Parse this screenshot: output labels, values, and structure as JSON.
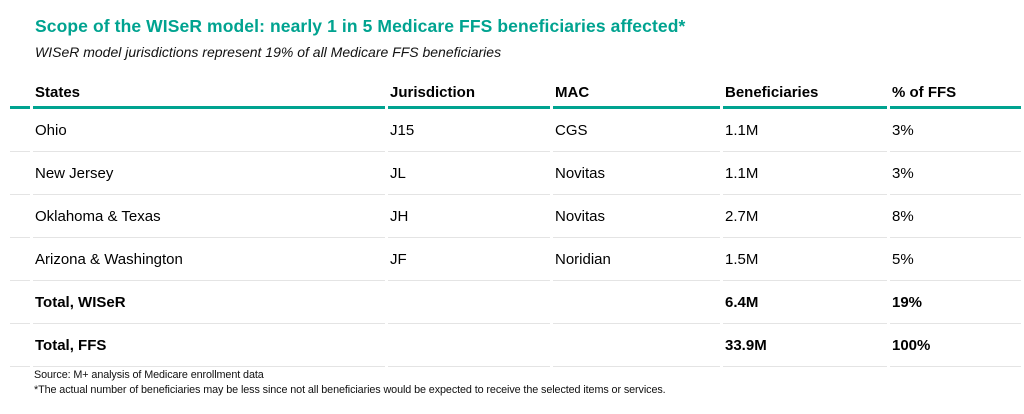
{
  "header": {
    "title": "Scope of the WISeR model: nearly 1 in 5 Medicare FFS beneficiaries affected*",
    "subtitle": "WISeR model jurisdictions represent 19% of all Medicare FFS beneficiaries"
  },
  "table": {
    "columns": [
      "States",
      "Jurisdiction",
      "MAC",
      "Beneficiaries",
      "% of FFS"
    ],
    "rows": [
      {
        "states": "Ohio",
        "jurisdiction": "J15",
        "mac": "CGS",
        "beneficiaries": "1.1M",
        "pct_of_ffs": "3%",
        "bold": false
      },
      {
        "states": "New Jersey",
        "jurisdiction": "JL",
        "mac": "Novitas",
        "beneficiaries": "1.1M",
        "pct_of_ffs": "3%",
        "bold": false
      },
      {
        "states": "Oklahoma & Texas",
        "jurisdiction": "JH",
        "mac": "Novitas",
        "beneficiaries": "2.7M",
        "pct_of_ffs": "8%",
        "bold": false
      },
      {
        "states": "Arizona & Washington",
        "jurisdiction": "JF",
        "mac": "Noridian",
        "beneficiaries": "1.5M",
        "pct_of_ffs": "5%",
        "bold": false
      },
      {
        "states": "Total, WISeR",
        "jurisdiction": "",
        "mac": "",
        "beneficiaries": "6.4M",
        "pct_of_ffs": "19%",
        "bold": true
      },
      {
        "states": "Total, FFS",
        "jurisdiction": "",
        "mac": "",
        "beneficiaries": "33.9M",
        "pct_of_ffs": "100%",
        "bold": true
      }
    ]
  },
  "footer": {
    "source": "Source: M+ analysis of Medicare enrollment data",
    "footnote": "*The actual number of beneficiaries may be less since not all beneficiaries would be expected to receive the selected items or services."
  },
  "colors": {
    "accent_teal": "#00a390",
    "row_separator": "#e4e4e4",
    "text": "#000000"
  }
}
